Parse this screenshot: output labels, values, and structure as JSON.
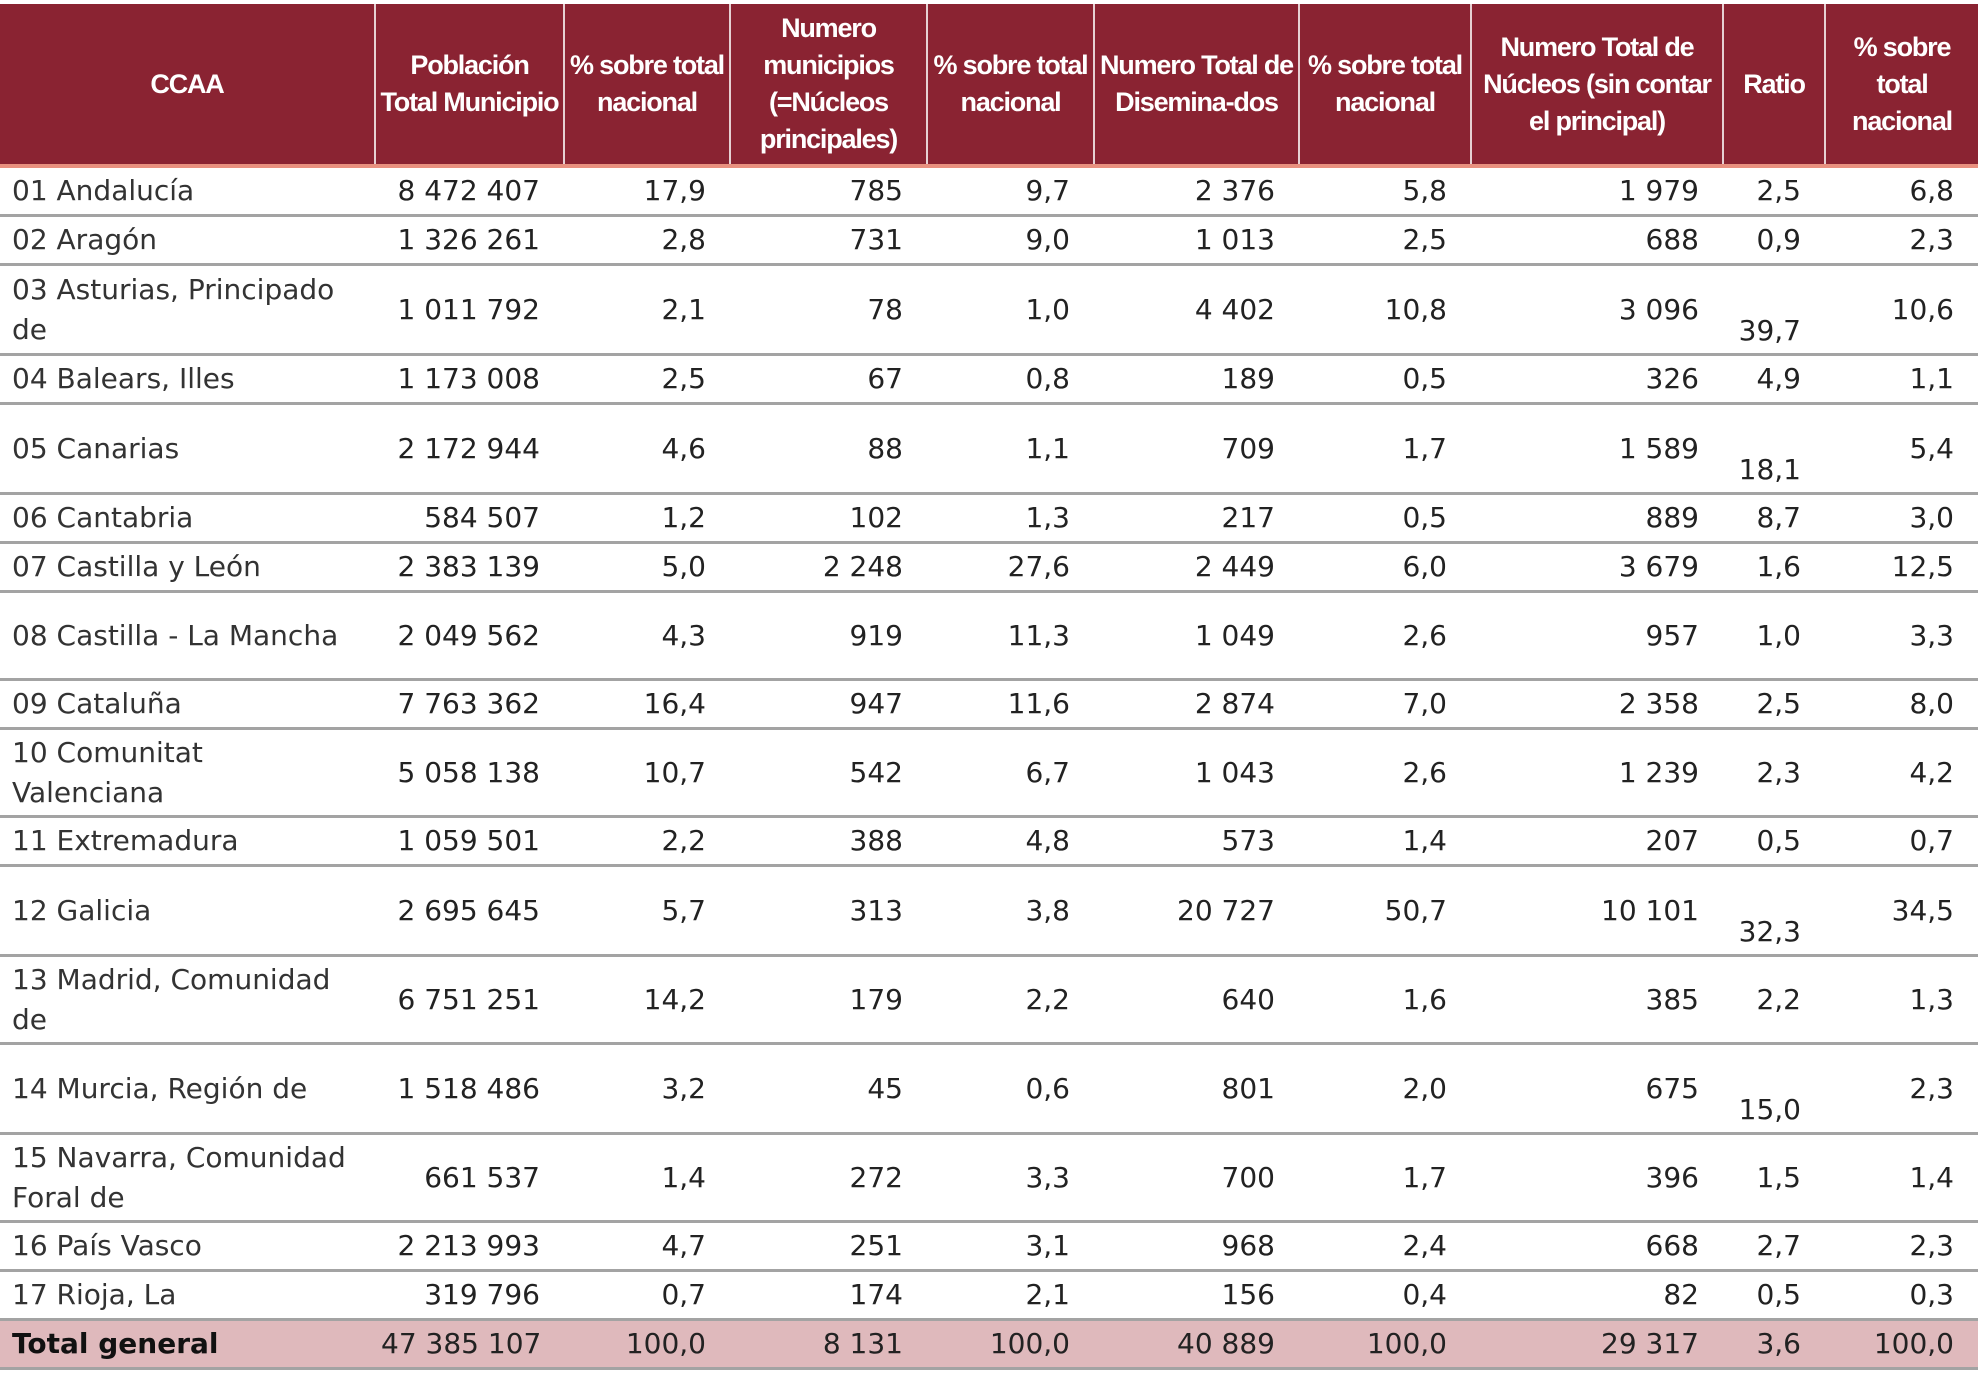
{
  "table": {
    "headers": [
      "CCAA",
      "Población Total Municipio",
      "% sobre total nacional",
      "Numero municipios (=Núcleos principales)",
      "% sobre total nacional",
      "Numero Total de Disemina-dos",
      "% sobre total nacional",
      "Numero Total de Núcleos (sin contar el principal)",
      "Ratio",
      "% sobre total nacional"
    ],
    "colors": {
      "header_bg": "#8a2332",
      "total_bg": "#dfb9bc"
    },
    "rows": [
      {
        "cells": [
          "01 Andalucía",
          "8 472 407",
          "17,9",
          "785",
          "9,7",
          "2 376",
          "5,8",
          "1 979",
          "2,5",
          "6,8"
        ]
      },
      {
        "cells": [
          "02 Aragón",
          "1 326 261",
          "2,8",
          "731",
          "9,0",
          "1 013",
          "2,5",
          "688",
          "0,9",
          "2,3"
        ]
      },
      {
        "cells": [
          "03 Asturias, Principado de",
          "1 011 792",
          "2,1",
          "78",
          "1,0",
          "4 402",
          "10,8",
          "3 096",
          "39,7",
          "10,6"
        ],
        "tall": true,
        "ratio_low": true
      },
      {
        "cells": [
          "04 Balears, Illes",
          "1 173 008",
          "2,5",
          "67",
          "0,8",
          "189",
          "0,5",
          "326",
          "4,9",
          "1,1"
        ]
      },
      {
        "cells": [
          "05 Canarias",
          "2 172 944",
          "4,6",
          "88",
          "1,1",
          "709",
          "1,7",
          "1 589",
          "18,1",
          "5,4"
        ],
        "tall": true,
        "ratio_low": true
      },
      {
        "cells": [
          "06 Cantabria",
          "584 507",
          "1,2",
          "102",
          "1,3",
          "217",
          "0,5",
          "889",
          "8,7",
          "3,0"
        ]
      },
      {
        "cells": [
          "07 Castilla y León",
          "2 383 139",
          "5,0",
          "2 248",
          "27,6",
          "2 449",
          "6,0",
          "3 679",
          "1,6",
          "12,5"
        ]
      },
      {
        "cells": [
          "08 Castilla - La Mancha",
          "2 049 562",
          "4,3",
          "919",
          "11,3",
          "1 049",
          "2,6",
          "957",
          "1,0",
          "3,3"
        ],
        "tall": true
      },
      {
        "cells": [
          "09 Cataluña",
          "7 763 362",
          "16,4",
          "947",
          "11,6",
          "2 874",
          "7,0",
          "2 358",
          "2,5",
          "8,0"
        ]
      },
      {
        "cells": [
          "10 Comunitat Valenciana",
          "5 058 138",
          "10,7",
          "542",
          "6,7",
          "1 043",
          "2,6",
          "1 239",
          "2,3",
          "4,2"
        ],
        "tall": true
      },
      {
        "cells": [
          "11 Extremadura",
          "1 059 501",
          "2,2",
          "388",
          "4,8",
          "573",
          "1,4",
          "207",
          "0,5",
          "0,7"
        ]
      },
      {
        "cells": [
          "12 Galicia",
          "2 695 645",
          "5,7",
          "313",
          "3,8",
          "20 727",
          "50,7",
          "10 101",
          "32,3",
          "34,5"
        ],
        "tall": true,
        "ratio_low": true
      },
      {
        "cells": [
          "13 Madrid, Comunidad de",
          "6 751 251",
          "14,2",
          "179",
          "2,2",
          "640",
          "1,6",
          "385",
          "2,2",
          "1,3"
        ],
        "tall": true
      },
      {
        "cells": [
          "14 Murcia, Región de",
          "1 518 486",
          "3,2",
          "45",
          "0,6",
          "801",
          "2,0",
          "675",
          "15,0",
          "2,3"
        ],
        "tall": true,
        "ratio_low": true
      },
      {
        "cells": [
          "15 Navarra, Comunidad Foral de",
          "661 537",
          "1,4",
          "272",
          "3,3",
          "700",
          "1,7",
          "396",
          "1,5",
          "1,4"
        ],
        "tall": true
      },
      {
        "cells": [
          "16 País Vasco",
          "2 213 993",
          "4,7",
          "251",
          "3,1",
          "968",
          "2,4",
          "668",
          "2,7",
          "2,3"
        ]
      },
      {
        "cells": [
          "17 Rioja, La",
          "319 796",
          "0,7",
          "174",
          "2,1",
          "156",
          "0,4",
          "82",
          "0,5",
          "0,3"
        ]
      }
    ],
    "total": {
      "cells": [
        "Total general",
        "47 385 107",
        "100,0",
        "8 131",
        "100,0",
        "40 889",
        "100,0",
        "29 317",
        "3,6",
        "100,0"
      ]
    }
  }
}
